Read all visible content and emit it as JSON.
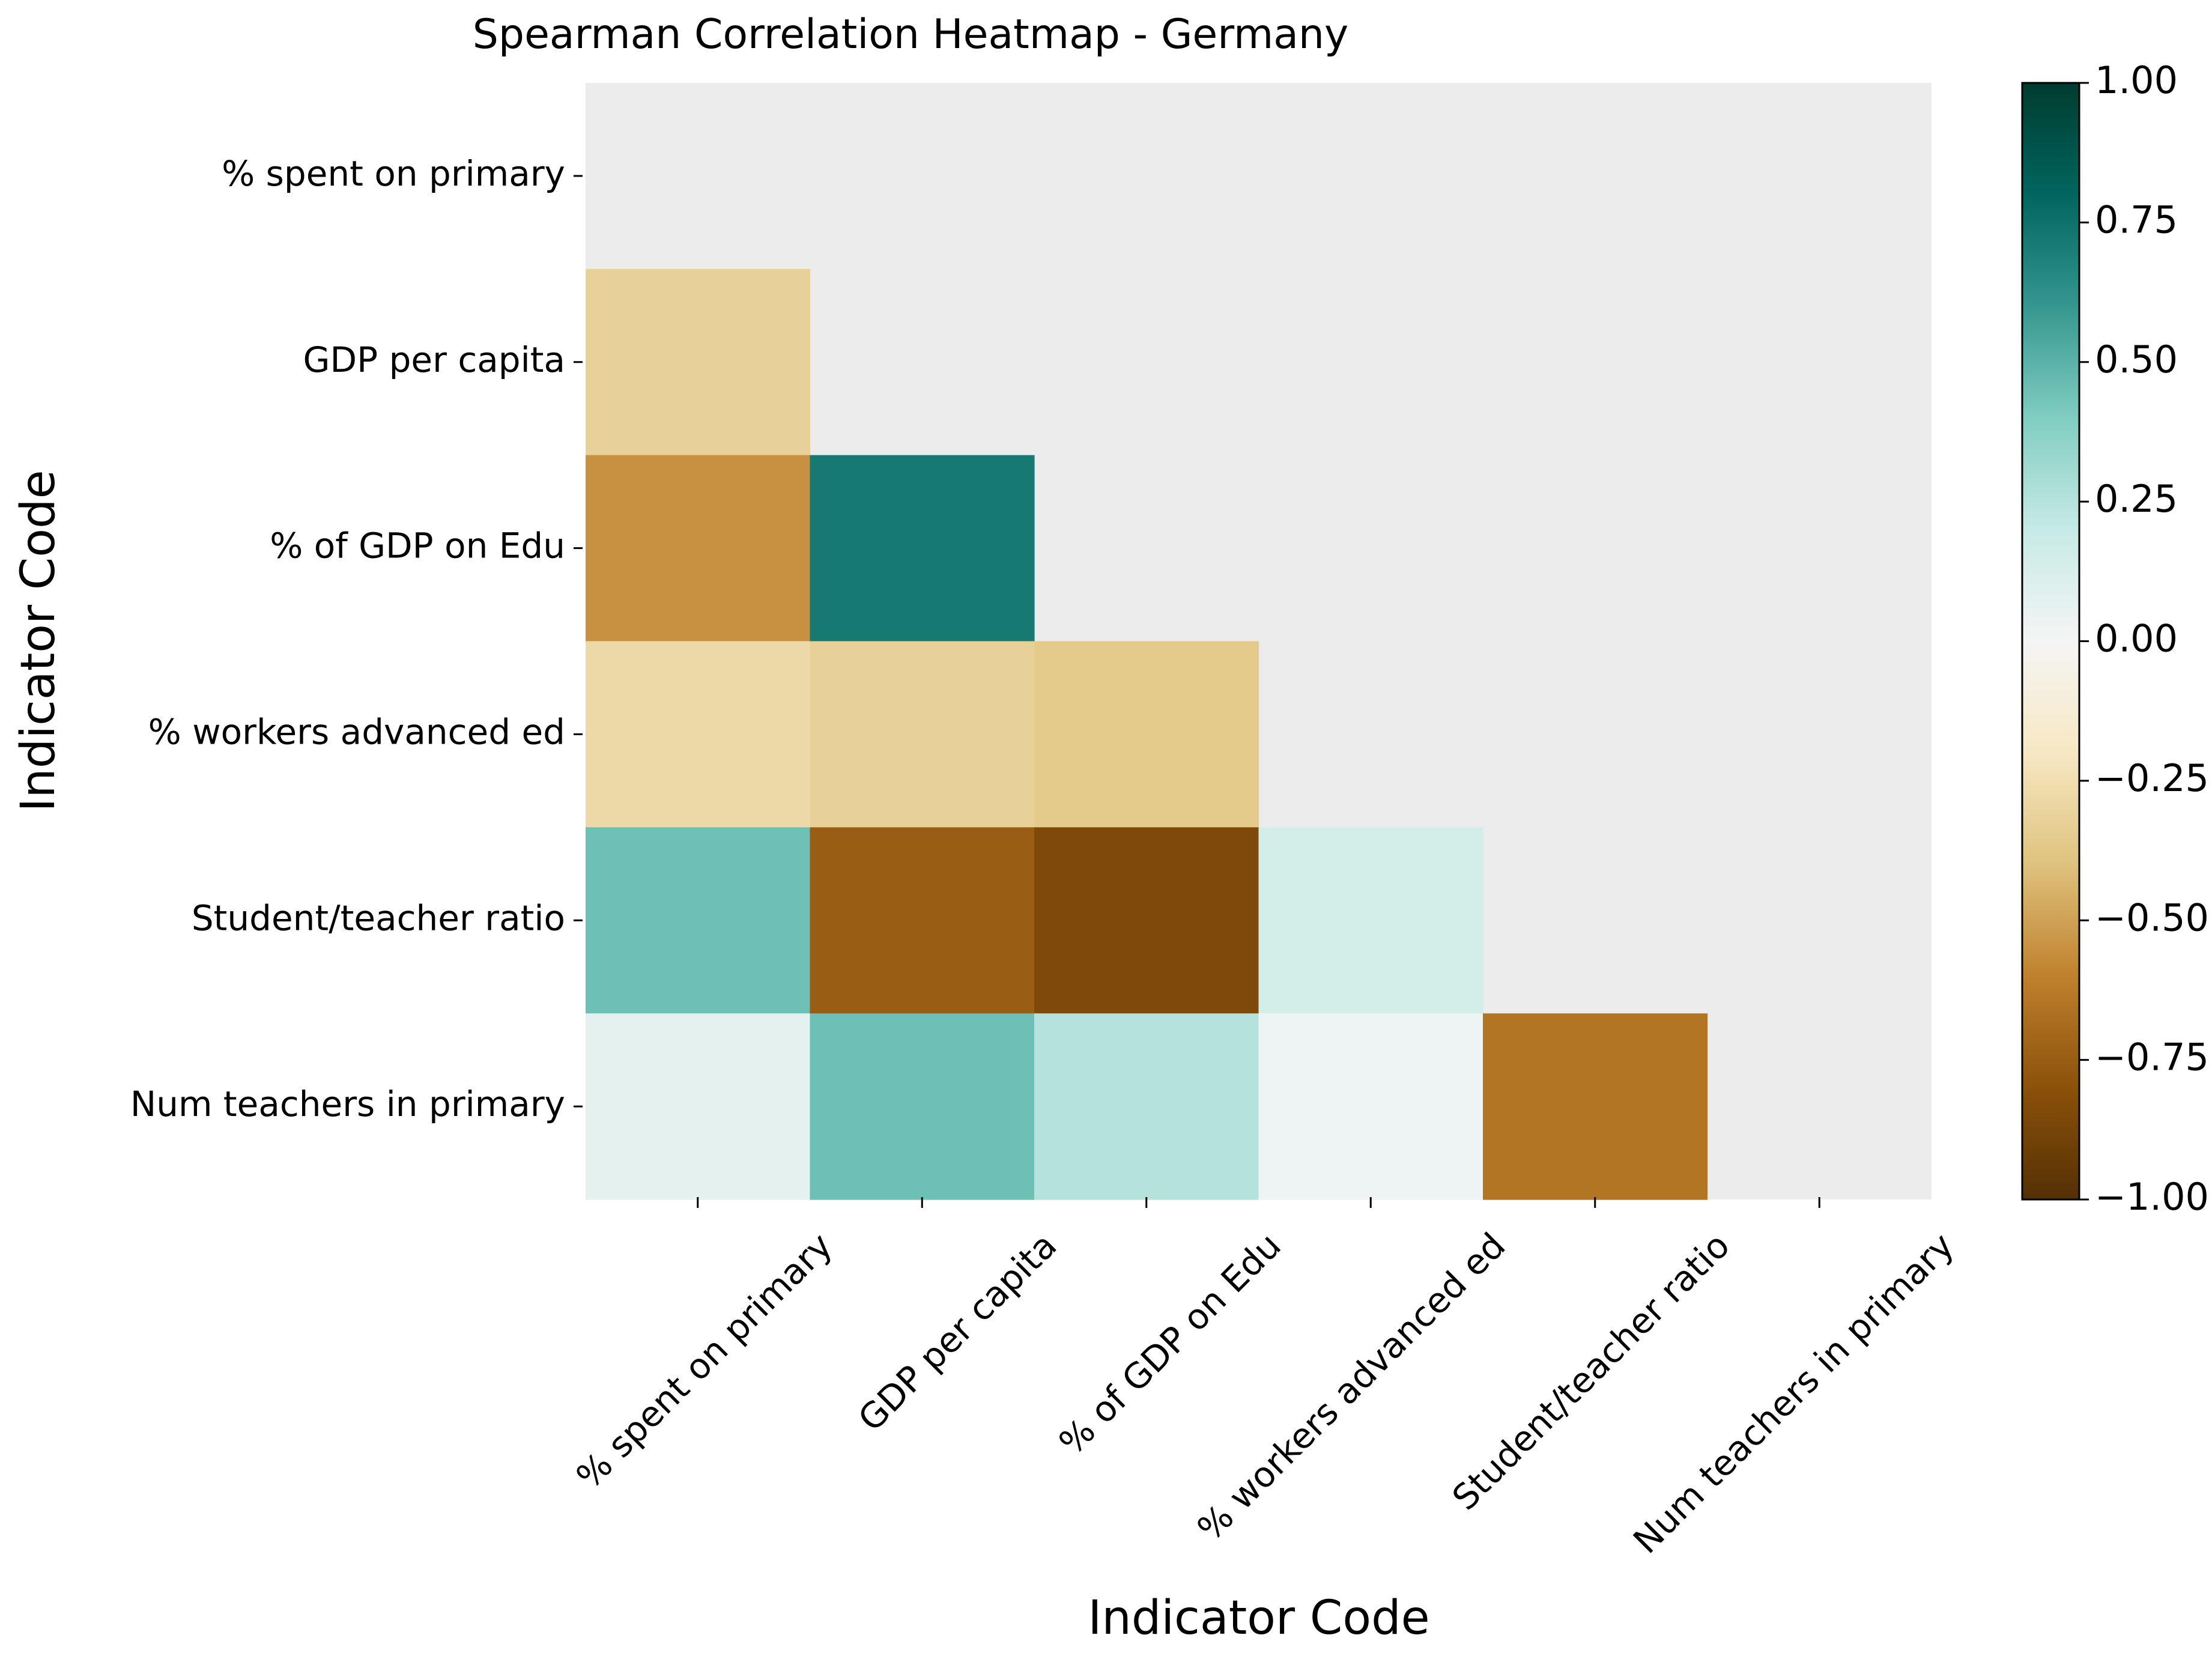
{
  "chart_data": {
    "type": "heatmap",
    "title": "Spearman Correlation Heatmap - Germany",
    "xlabel": "Indicator Code",
    "ylabel": "Indicator Code",
    "x_categories": [
      "% spent on primary",
      "GDP per capita",
      "% of GDP on Edu",
      "% workers advanced ed",
      "Student/teacher ratio",
      "Num teachers in primary"
    ],
    "y_categories": [
      "% spent on primary",
      "GDP per capita",
      "% of GDP on Edu",
      "% workers advanced ed",
      "Student/teacher ratio",
      "Num teachers in primary"
    ],
    "mask": "upper triangle including diagonal",
    "masked_color": "#ececec",
    "values": [
      [
        null,
        null,
        null,
        null,
        null,
        null
      ],
      [
        -0.32,
        null,
        null,
        null,
        null,
        null
      ],
      [
        -0.55,
        0.72,
        null,
        null,
        null,
        null
      ],
      [
        -0.28,
        -0.32,
        -0.36,
        null,
        null,
        null
      ],
      [
        0.45,
        -0.75,
        -0.85,
        0.15,
        null,
        null
      ],
      [
        0.07,
        0.45,
        0.25,
        0.03,
        -0.65,
        null
      ]
    ],
    "colormap": "BrBG",
    "colorbar": {
      "vmin": -1.0,
      "vmax": 1.0,
      "ticks": [
        "1.00",
        "0.75",
        "0.50",
        "0.25",
        "0.00",
        "−0.25",
        "−0.50",
        "−0.75",
        "−1.00"
      ]
    },
    "grid": false
  }
}
